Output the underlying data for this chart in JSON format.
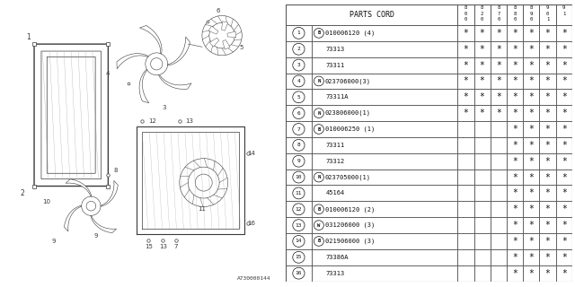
{
  "title": "A730000144",
  "bg_color": "#ffffff",
  "parts": [
    {
      "num": "1",
      "prefix": "B",
      "code": "010006120 (4)",
      "stars": [
        1,
        1,
        1,
        1,
        1,
        1,
        1
      ]
    },
    {
      "num": "2",
      "prefix": "",
      "code": "73313",
      "stars": [
        1,
        1,
        1,
        1,
        1,
        1,
        1
      ]
    },
    {
      "num": "3",
      "prefix": "",
      "code": "73311",
      "stars": [
        1,
        1,
        1,
        1,
        1,
        1,
        1
      ]
    },
    {
      "num": "4",
      "prefix": "N",
      "code": "023706000(3)",
      "stars": [
        1,
        1,
        1,
        1,
        1,
        1,
        1
      ]
    },
    {
      "num": "5",
      "prefix": "",
      "code": "73311A",
      "stars": [
        1,
        1,
        1,
        1,
        1,
        1,
        1
      ]
    },
    {
      "num": "6",
      "prefix": "N",
      "code": "023806000(1)",
      "stars": [
        1,
        1,
        1,
        1,
        1,
        1,
        1
      ]
    },
    {
      "num": "7",
      "prefix": "B",
      "code": "010006250 (1)",
      "stars": [
        0,
        0,
        0,
        1,
        1,
        1,
        1
      ]
    },
    {
      "num": "8",
      "prefix": "",
      "code": "73311",
      "stars": [
        0,
        0,
        0,
        1,
        1,
        1,
        1
      ]
    },
    {
      "num": "9",
      "prefix": "",
      "code": "73312",
      "stars": [
        0,
        0,
        0,
        1,
        1,
        1,
        1
      ]
    },
    {
      "num": "10",
      "prefix": "N",
      "code": "023705000(1)",
      "stars": [
        0,
        0,
        0,
        1,
        1,
        1,
        1
      ]
    },
    {
      "num": "11",
      "prefix": "",
      "code": "45164",
      "stars": [
        0,
        0,
        0,
        1,
        1,
        1,
        1
      ]
    },
    {
      "num": "12",
      "prefix": "B",
      "code": "010006120 (2)",
      "stars": [
        0,
        0,
        0,
        1,
        1,
        1,
        1
      ]
    },
    {
      "num": "13",
      "prefix": "W",
      "code": "031206000 (3)",
      "stars": [
        0,
        0,
        0,
        1,
        1,
        1,
        1
      ]
    },
    {
      "num": "14",
      "prefix": "B",
      "code": "021906000 (3)",
      "stars": [
        0,
        0,
        0,
        1,
        1,
        1,
        1
      ]
    },
    {
      "num": "15",
      "prefix": "",
      "code": "73386A",
      "stars": [
        0,
        0,
        0,
        1,
        1,
        1,
        1
      ]
    },
    {
      "num": "16",
      "prefix": "",
      "code": "73313",
      "stars": [
        0,
        0,
        0,
        1,
        1,
        1,
        1
      ]
    }
  ],
  "year_cols": [
    "800",
    "820",
    "870",
    "880",
    "890",
    "901",
    "91"
  ]
}
